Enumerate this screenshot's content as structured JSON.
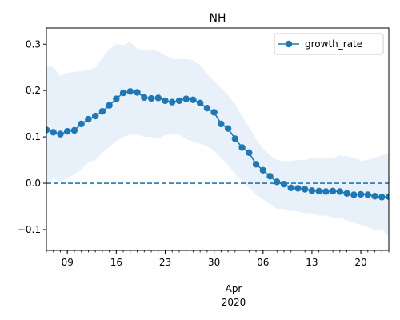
{
  "chart_data": {
    "type": "line",
    "title": "NH",
    "xlabel": "",
    "ylabel": "",
    "x_axis": {
      "date_start": "2020-03-06",
      "date_end": "2020-04-24",
      "major_ticks": [
        "2020-03-09",
        "2020-03-16",
        "2020-03-23",
        "2020-03-30",
        "2020-04-06",
        "2020-04-13",
        "2020-04-20"
      ],
      "major_tick_labels": [
        "09",
        "16",
        "23",
        "30",
        "06",
        "13",
        "20"
      ],
      "month_label": "Apr",
      "year_label": "2020"
    },
    "y_axis": {
      "ylim": [
        -0.145,
        0.335
      ],
      "ticks": [
        -0.1,
        0.0,
        0.1,
        0.2,
        0.3
      ],
      "tick_labels": [
        "−0.1",
        "0.0",
        "0.1",
        "0.2",
        "0.3"
      ]
    },
    "legend": {
      "position": "top-right",
      "entries": [
        "growth_rate"
      ]
    },
    "colors": {
      "line": "#1f77b4",
      "band": "#e8f1fa",
      "zero_line": "#1f77b4"
    },
    "series": [
      {
        "name": "growth_rate",
        "x": [
          "2020-03-06",
          "2020-03-07",
          "2020-03-08",
          "2020-03-09",
          "2020-03-10",
          "2020-03-11",
          "2020-03-12",
          "2020-03-13",
          "2020-03-14",
          "2020-03-15",
          "2020-03-16",
          "2020-03-17",
          "2020-03-18",
          "2020-03-19",
          "2020-03-20",
          "2020-03-21",
          "2020-03-22",
          "2020-03-23",
          "2020-03-24",
          "2020-03-25",
          "2020-03-26",
          "2020-03-27",
          "2020-03-28",
          "2020-03-29",
          "2020-03-30",
          "2020-03-31",
          "2020-04-01",
          "2020-04-02",
          "2020-04-03",
          "2020-04-04",
          "2020-04-05",
          "2020-04-06",
          "2020-04-07",
          "2020-04-08",
          "2020-04-09",
          "2020-04-10",
          "2020-04-11",
          "2020-04-12",
          "2020-04-13",
          "2020-04-14",
          "2020-04-15",
          "2020-04-16",
          "2020-04-17",
          "2020-04-18",
          "2020-04-19",
          "2020-04-20",
          "2020-04-21",
          "2020-04-22",
          "2020-04-23",
          "2020-04-24"
        ],
        "values": [
          0.115,
          0.11,
          0.106,
          0.112,
          0.114,
          0.128,
          0.138,
          0.145,
          0.155,
          0.168,
          0.182,
          0.195,
          0.198,
          0.196,
          0.185,
          0.183,
          0.184,
          0.178,
          0.175,
          0.178,
          0.182,
          0.18,
          0.173,
          0.162,
          0.153,
          0.128,
          0.118,
          0.096,
          0.077,
          0.066,
          0.041,
          0.028,
          0.015,
          0.003,
          -0.002,
          -0.01,
          -0.011,
          -0.013,
          -0.016,
          -0.017,
          -0.018,
          -0.017,
          -0.018,
          -0.022,
          -0.025,
          -0.024,
          -0.025,
          -0.028,
          -0.03,
          -0.029
        ],
        "lower": [
          0.0,
          0.01,
          0.003,
          0.01,
          0.02,
          0.03,
          0.045,
          0.05,
          0.065,
          0.08,
          0.09,
          0.1,
          0.105,
          0.105,
          0.1,
          0.1,
          0.095,
          0.104,
          0.105,
          0.105,
          0.095,
          0.09,
          0.085,
          0.08,
          0.07,
          0.055,
          0.04,
          0.02,
          0.005,
          -0.01,
          -0.025,
          -0.035,
          -0.045,
          -0.055,
          -0.055,
          -0.06,
          -0.06,
          -0.065,
          -0.065,
          -0.07,
          -0.07,
          -0.075,
          -0.075,
          -0.08,
          -0.085,
          -0.09,
          -0.095,
          -0.1,
          -0.1,
          -0.115
        ],
        "upper": [
          0.255,
          0.25,
          0.232,
          0.238,
          0.24,
          0.242,
          0.245,
          0.25,
          0.27,
          0.29,
          0.3,
          0.298,
          0.305,
          0.29,
          0.288,
          0.288,
          0.285,
          0.276,
          0.268,
          0.268,
          0.268,
          0.265,
          0.255,
          0.235,
          0.22,
          0.205,
          0.19,
          0.17,
          0.145,
          0.12,
          0.095,
          0.075,
          0.06,
          0.05,
          0.048,
          0.048,
          0.05,
          0.05,
          0.055,
          0.055,
          0.055,
          0.055,
          0.06,
          0.058,
          0.055,
          0.048,
          0.05,
          0.055,
          0.06,
          0.065
        ],
        "zero_line": 0.0
      }
    ]
  }
}
